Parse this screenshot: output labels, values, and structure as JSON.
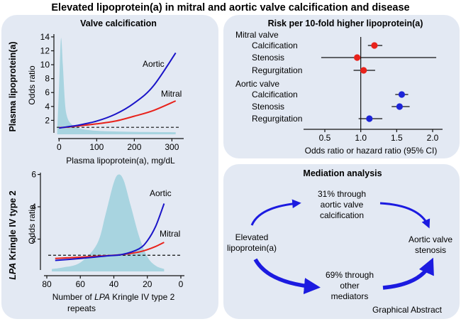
{
  "main_title": "Elevated lipoprotein(a) in mitral and aortic valve calcification and disease",
  "colors": {
    "panel_bg": "#e3e9f3",
    "density": "#a8d4e0",
    "aortic": "#1a14c8",
    "mitral": "#e8221b",
    "red_dot": "#e8221b",
    "blue_dot": "#1d24d8",
    "arrow": "#1c1be0"
  },
  "valve_panel": {
    "title": "Valve calcification",
    "top_side_label": "Plasma lipoprotein(a)",
    "bottom_side_label_italic": "LPA",
    "bottom_side_label_rest": " Kringle IV type 2",
    "top_chart": {
      "ylabel": "Odds ratio",
      "xlabel": "Plasma lipoprotein(a), mg/dL",
      "xticks": [
        "0",
        "100",
        "200",
        "300"
      ],
      "yticks": [
        "2",
        "4",
        "6",
        "8",
        "10",
        "12",
        "14"
      ],
      "series_labels": {
        "aortic": "Aortic",
        "mitral": "Mitral"
      }
    },
    "bottom_chart": {
      "ylabel": "Odds ratio",
      "xlabel_prefix": "Number of ",
      "xlabel_italic": "LPA",
      "xlabel_suffix": " Kringle IV type 2",
      "xlabel_line2": "repeats",
      "xticks": [
        "80",
        "60",
        "40",
        "20",
        "0"
      ],
      "yticks": [
        "2",
        "4",
        "6"
      ],
      "series_labels": {
        "aortic": "Aortic",
        "mitral": "Mitral"
      }
    }
  },
  "risk_panel": {
    "title": "Risk per 10-fold higher lipoprotein(a)",
    "xlabel": "Odds ratio or hazard ratio (95% CI)",
    "xticks": [
      "0.5",
      "1.0",
      "1.5",
      "2.0"
    ],
    "groups": [
      {
        "header": "Mitral valve",
        "rows": [
          {
            "label": "Calcification",
            "est": 1.19,
            "lo": 1.1,
            "hi": 1.3,
            "color": "red"
          },
          {
            "label": "Stenosis",
            "est": 0.95,
            "lo": 0.45,
            "hi": 2.05,
            "color": "red"
          },
          {
            "label": "Regurgitation",
            "est": 1.04,
            "lo": 0.9,
            "hi": 1.2,
            "color": "red"
          }
        ]
      },
      {
        "header": "Aortic valve",
        "rows": [
          {
            "label": "Calcification",
            "est": 1.57,
            "lo": 1.48,
            "hi": 1.66,
            "color": "blue"
          },
          {
            "label": "Stenosis",
            "est": 1.54,
            "lo": 1.43,
            "hi": 1.68,
            "color": "blue"
          },
          {
            "label": "Regurgitation",
            "est": 1.12,
            "lo": 0.97,
            "hi": 1.3,
            "color": "blue"
          }
        ]
      }
    ]
  },
  "mediation_panel": {
    "title": "Mediation analysis",
    "source": "Elevated\nlipoprotein(a)",
    "upper_path": "31% through\naortic valve\ncalcification",
    "lower_path": "69% through\nother\nmediators",
    "outcome": "Aortic valve\nstenosis",
    "caption": "Graphical Abstract"
  },
  "chart_data": [
    {
      "type": "line",
      "title": "Valve calcification",
      "xlabel": "Plasma lipoprotein(a), mg/dL",
      "ylabel": "Odds ratio",
      "xlim": [
        -10,
        320
      ],
      "ylim": [
        0,
        14.5
      ],
      "reference_line": 1,
      "series": [
        {
          "name": "Aortic",
          "x": [
            0,
            25,
            50,
            100,
            150,
            200,
            250,
            310
          ],
          "values": [
            0.9,
            1.1,
            1.3,
            1.9,
            2.9,
            4.5,
            6.9,
            11.7
          ]
        },
        {
          "name": "Mitral",
          "x": [
            0,
            25,
            50,
            100,
            150,
            200,
            250,
            310
          ],
          "values": [
            0.95,
            1.05,
            1.2,
            1.5,
            1.9,
            2.6,
            3.4,
            4.8
          ]
        }
      ],
      "density": {
        "x": [
          -5,
          0,
          5,
          10,
          15,
          20,
          30,
          50,
          80,
          120,
          200,
          310
        ],
        "values": [
          0.2,
          7.0,
          13.8,
          10.0,
          5.0,
          2.8,
          1.6,
          0.9,
          0.6,
          0.45,
          0.35,
          0.3
        ]
      }
    },
    {
      "type": "line",
      "xlabel": "Number of LPA Kringle IV type 2 repeats",
      "ylabel": "Odds ratio",
      "xlim": [
        80,
        0
      ],
      "ylim": [
        0,
        6.2
      ],
      "reference_line": 1,
      "series": [
        {
          "name": "Aortic",
          "x": [
            75,
            60,
            45,
            35,
            25,
            20,
            15,
            10
          ],
          "values": [
            0.68,
            0.8,
            0.95,
            1.05,
            1.4,
            1.9,
            2.8,
            4.2
          ]
        },
        {
          "name": "Mitral",
          "x": [
            75,
            60,
            45,
            35,
            25,
            20,
            15,
            10
          ],
          "values": [
            0.8,
            0.88,
            0.97,
            1.04,
            1.2,
            1.35,
            1.55,
            1.8
          ]
        }
      ],
      "density": {
        "x": [
          77,
          70,
          60,
          50,
          45,
          40,
          37,
          34,
          30,
          25,
          20,
          15,
          10
        ],
        "values": [
          0.15,
          0.25,
          0.55,
          1.7,
          3.5,
          5.5,
          6.0,
          5.6,
          4.1,
          2.2,
          0.9,
          0.35,
          0.15
        ]
      }
    },
    {
      "type": "scatter",
      "title": "Risk per 10-fold higher lipoprotein(a)",
      "xlabel": "Odds ratio or hazard ratio (95% CI)",
      "xlim": [
        0.3,
        2.2
      ],
      "reference_line": 1.0,
      "categories": [
        "Mitral valve Calcification",
        "Mitral valve Stenosis",
        "Mitral valve Regurgitation",
        "Aortic valve Calcification",
        "Aortic valve Stenosis",
        "Aortic valve Regurgitation"
      ],
      "values": [
        1.19,
        0.95,
        1.04,
        1.57,
        1.54,
        1.12
      ],
      "ci_low": [
        1.1,
        0.45,
        0.9,
        1.48,
        1.43,
        0.97
      ],
      "ci_high": [
        1.3,
        2.05,
        1.2,
        1.66,
        1.68,
        1.3
      ]
    }
  ]
}
